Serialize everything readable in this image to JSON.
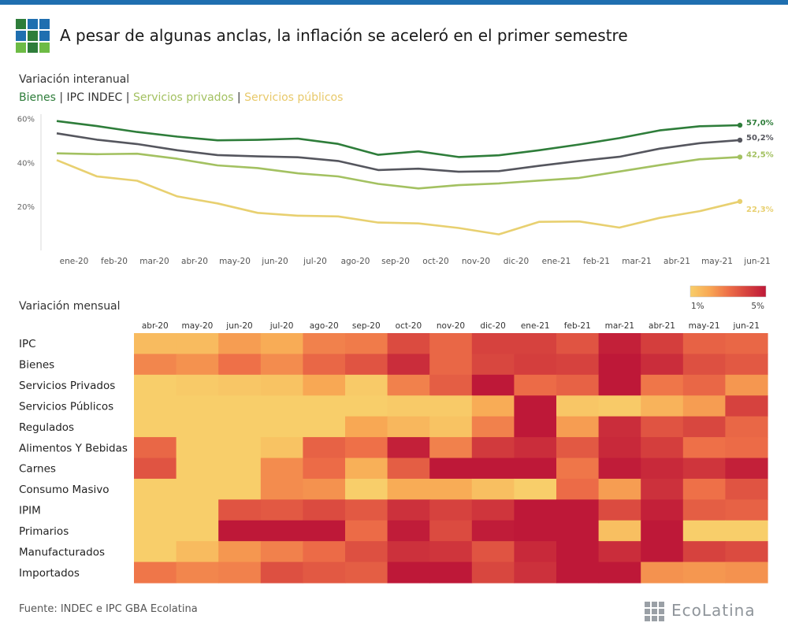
{
  "header": {
    "title": "A pesar de algunas anclas, la inflación se aceleró en el primer semestre",
    "logo": "ecolatina-grid-logo"
  },
  "line_section": {
    "subtitle": "Variación interanual",
    "legend": [
      {
        "label": "Bienes",
        "color": "#2e7d3a"
      },
      {
        "label": "IPC INDEC",
        "color": "#55565e"
      },
      {
        "label": "Servicios privados",
        "color": "#a3c161"
      },
      {
        "label": "Servicios públicos",
        "color": "#e8d070"
      }
    ]
  },
  "heatmap_section": {
    "subtitle": "Variación mensual",
    "scale": {
      "min_label": "1%",
      "max_label": "5%"
    }
  },
  "footer": {
    "source": "Fuente: INDEC e IPC GBA Ecolatina",
    "brand": "EcoLatina"
  },
  "chart_data": [
    {
      "type": "line",
      "title": "Variación interanual",
      "x": [
        "ene-20",
        "feb-20",
        "mar-20",
        "abr-20",
        "may-20",
        "jun-20",
        "jul-20",
        "ago-20",
        "sep-20",
        "oct-20",
        "nov-20",
        "dic-20",
        "ene-21",
        "feb-21",
        "mar-21",
        "abr-21",
        "may-21",
        "jun-21"
      ],
      "ylim": [
        0,
        62
      ],
      "yticks": [
        20,
        40,
        60
      ],
      "ytick_labels": [
        "20%",
        "40%",
        "60%"
      ],
      "grid": false,
      "series": [
        {
          "name": "Bienes",
          "color": "#2e7d3a",
          "end_label": "57,0%",
          "values": [
            58.9,
            56.6,
            53.9,
            51.8,
            50.1,
            50.3,
            50.9,
            48.5,
            43.5,
            45.1,
            42.5,
            43.3,
            45.6,
            48.2,
            51.1,
            54.6,
            56.5,
            57.0
          ]
        },
        {
          "name": "IPC INDEC",
          "color": "#55565e",
          "end_label": "50,2%",
          "values": [
            53.3,
            50.4,
            48.4,
            45.6,
            43.4,
            42.8,
            42.4,
            40.7,
            36.6,
            37.2,
            35.8,
            36.1,
            38.5,
            40.7,
            42.6,
            46.3,
            48.8,
            50.2
          ]
        },
        {
          "name": "Servicios privados",
          "color": "#a3c161",
          "end_label": "42,5%",
          "values": [
            44.2,
            43.8,
            44.0,
            41.7,
            38.7,
            37.5,
            35.1,
            33.7,
            30.3,
            28.2,
            29.7,
            30.5,
            31.8,
            33.0,
            35.9,
            38.8,
            41.5,
            42.5
          ]
        },
        {
          "name": "Servicios públicos",
          "color": "#e8d070",
          "end_label": "22,3%",
          "values": [
            41.1,
            33.7,
            31.7,
            24.6,
            21.4,
            17.1,
            15.8,
            15.5,
            12.7,
            12.3,
            10.2,
            7.3,
            13.0,
            13.2,
            10.4,
            14.8,
            17.9,
            22.3
          ]
        }
      ]
    },
    {
      "type": "heatmap",
      "title": "Variación mensual",
      "x": [
        "abr-20",
        "may-20",
        "jun-20",
        "jul-20",
        "ago-20",
        "sep-20",
        "oct-20",
        "nov-20",
        "dic-20",
        "ene-21",
        "feb-21",
        "mar-21",
        "abr-21",
        "may-21",
        "jun-21"
      ],
      "y": [
        "IPC",
        "Bienes",
        "Servicios Privados",
        "Servicios Públicos",
        "Regulados",
        "Alimentos Y Bebidas",
        "Carnes",
        "Consumo Masivo",
        "IPIM",
        "Primarios",
        "Manufacturados",
        "Importados"
      ],
      "color_range": [
        1,
        5
      ],
      "color_range_labels": [
        "1%",
        "5%"
      ],
      "values": [
        [
          1.5,
          1.5,
          2.2,
          1.9,
          2.7,
          2.8,
          3.8,
          3.2,
          4.0,
          4.0,
          3.6,
          4.8,
          4.1,
          3.3,
          3.2
        ],
        [
          2.6,
          2.4,
          3.0,
          2.5,
          3.2,
          3.6,
          4.5,
          3.2,
          3.9,
          4.1,
          4.0,
          5.0,
          4.5,
          3.7,
          3.5
        ],
        [
          1.0,
          1.1,
          1.2,
          1.3,
          2.0,
          1.1,
          2.7,
          3.4,
          5.0,
          3.1,
          3.3,
          5.0,
          2.9,
          3.2,
          2.3
        ],
        [
          1.0,
          1.0,
          1.0,
          1.0,
          1.0,
          1.0,
          1.1,
          1.1,
          1.9,
          5.0,
          1.2,
          1.1,
          1.7,
          2.2,
          4.0
        ],
        [
          1.0,
          1.0,
          1.0,
          1.0,
          1.0,
          2.0,
          1.6,
          1.3,
          2.7,
          5.0,
          2.2,
          4.5,
          3.6,
          3.9,
          3.2
        ],
        [
          3.2,
          1.0,
          1.0,
          1.3,
          3.3,
          3.0,
          4.8,
          2.7,
          4.2,
          4.5,
          3.5,
          4.6,
          4.1,
          3.0,
          3.1
        ],
        [
          3.6,
          1.0,
          1.0,
          2.5,
          3.1,
          1.8,
          3.4,
          5.0,
          5.0,
          5.0,
          2.9,
          4.9,
          4.6,
          4.3,
          4.8
        ],
        [
          1.0,
          1.0,
          1.0,
          2.5,
          2.4,
          1.0,
          1.9,
          1.9,
          1.4,
          1.0,
          3.1,
          2.2,
          4.4,
          3.0,
          3.6
        ],
        [
          1.0,
          1.0,
          3.6,
          3.5,
          3.8,
          3.5,
          4.4,
          4.0,
          4.3,
          5.0,
          5.0,
          3.8,
          4.8,
          3.4,
          3.3
        ],
        [
          1.0,
          1.0,
          5.0,
          5.0,
          5.0,
          3.1,
          4.9,
          3.8,
          4.9,
          5.0,
          5.0,
          1.4,
          5.0,
          1.0,
          1.0
        ],
        [
          1.0,
          1.5,
          2.3,
          2.7,
          3.1,
          3.7,
          4.4,
          4.3,
          3.6,
          4.6,
          5.0,
          4.5,
          5.0,
          4.0,
          3.8
        ],
        [
          2.9,
          2.6,
          2.7,
          3.7,
          3.5,
          3.4,
          5.0,
          5.0,
          3.9,
          4.4,
          5.0,
          5.0,
          2.4,
          2.3,
          2.4
        ]
      ]
    }
  ]
}
